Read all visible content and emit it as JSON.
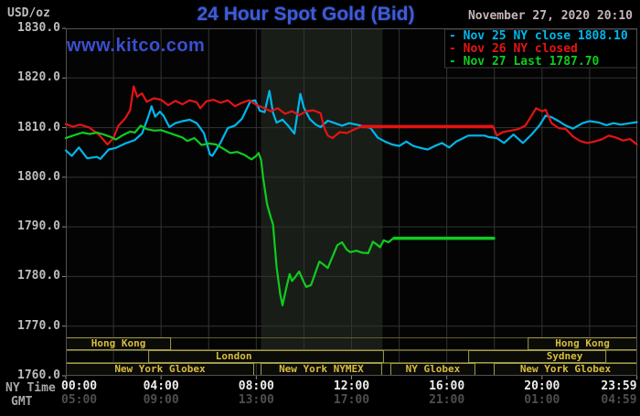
{
  "header": {
    "unit_label": "USD/oz",
    "title": "24 Hour Spot Gold (Bid)",
    "datetime": "November 27, 2020 20:10",
    "watermark": "www.kitco.com"
  },
  "legend": {
    "items": [
      {
        "text": "- Nov 25 NY close 1808.10",
        "color": "#00b7eb"
      },
      {
        "text": "- Nov 26 NY closed",
        "color": "#e41414"
      },
      {
        "text": "- Nov 27 Last 1787.70",
        "color": "#0fcc1f"
      }
    ]
  },
  "y_axis": {
    "labels": [
      {
        "value": 1830,
        "label": "1830.0"
      },
      {
        "value": 1820,
        "label": "1820.0"
      },
      {
        "value": 1810,
        "label": "1810.0"
      },
      {
        "value": 1800,
        "label": "1800.0"
      },
      {
        "value": 1790,
        "label": "1790.0"
      },
      {
        "value": 1780,
        "label": "1780.0"
      },
      {
        "value": 1770,
        "label": "1770.0"
      },
      {
        "value": 1760,
        "label": "1760.0"
      }
    ]
  },
  "x_axis": {
    "ny_label": "NY Time",
    "gmt_label": "GMT",
    "ticks": [
      {
        "hour": 0,
        "ny": "00:00",
        "gmt": "05:00",
        "align": "left"
      },
      {
        "hour": 4,
        "ny": "04:00",
        "gmt": "09:00",
        "align": "center"
      },
      {
        "hour": 8,
        "ny": "08:00",
        "gmt": "13:00",
        "align": "center"
      },
      {
        "hour": 12,
        "ny": "12:00",
        "gmt": "17:00",
        "align": "center"
      },
      {
        "hour": 16,
        "ny": "16:00",
        "gmt": "21:00",
        "align": "center"
      },
      {
        "hour": 20,
        "ny": "20:00",
        "gmt": "01:00",
        "align": "center"
      },
      {
        "hour": 23.983,
        "ny": "23:59",
        "gmt": "04:59",
        "align": "right"
      }
    ]
  },
  "sessions": {
    "rows": [
      {
        "boxes": [
          {
            "label": "Hong Kong",
            "from": 0,
            "to": 4.42
          },
          {
            "label": "Hong Kong",
            "from": 19.4,
            "to": 24
          }
        ]
      },
      {
        "boxes": [
          {
            "label": "London",
            "from": 3.46,
            "to": 13.36,
            "label_hour": 7.05
          },
          {
            "label": "Sydney",
            "from": 16.9,
            "to": 22.7,
            "label_hour": 20.95
          }
        ]
      },
      {
        "boxes": [
          {
            "label": "New York Globex",
            "from": 0,
            "to": 7.91
          },
          {
            "label": "New York NYMEX",
            "from": 8.18,
            "to": 13.28
          },
          {
            "label": "NY Globex",
            "from": 13.63,
            "to": 17.2
          },
          {
            "label": "New York Globex",
            "from": 17.97,
            "to": 24
          }
        ]
      }
    ]
  },
  "colors": {
    "background": "#000000",
    "plot_background": "#040404",
    "grid": "#333333",
    "plot_border": "#525252",
    "tick": "#8a8a8a",
    "session_row_border": "#63602a",
    "session_box_border": "#a19d4b",
    "session_text": "#d9bc3e",
    "legend_box_border": "#3a3a3a",
    "title_blue": "#3e5cd8",
    "watermark_blue": "#3a4fd0",
    "datetime_text": "#c6b6b6"
  },
  "chart_data": {
    "type": "line",
    "title": "24 Hour Spot Gold (Bid)",
    "ylabel": "USD/oz",
    "x_unit": "NY time, hours 0-24",
    "xlim": [
      0,
      24
    ],
    "ylim": [
      1760,
      1830
    ],
    "grid": {
      "vertical_hours": [
        2,
        4,
        6,
        8,
        10,
        12,
        14,
        16,
        18,
        20,
        22
      ],
      "horizontal_values": [
        1820,
        1810,
        1800,
        1790,
        1780,
        1770
      ]
    },
    "highlight_band": {
      "from": 8.2,
      "to": 13.3,
      "color": "#191d17",
      "note": "NYMEX floor session shading"
    },
    "series": [
      {
        "name": "Nov 25",
        "legend": "Nov 25 NY close 1808.10",
        "color": "#00b7eb",
        "points": [
          [
            0.0,
            1805.4
          ],
          [
            0.25,
            1804.3
          ],
          [
            0.55,
            1806.0
          ],
          [
            0.9,
            1803.8
          ],
          [
            1.3,
            1804.1
          ],
          [
            1.45,
            1803.7
          ],
          [
            1.8,
            1805.6
          ],
          [
            2.1,
            1805.9
          ],
          [
            2.5,
            1806.8
          ],
          [
            2.9,
            1807.5
          ],
          [
            3.2,
            1808.8
          ],
          [
            3.45,
            1812.0
          ],
          [
            3.6,
            1814.3
          ],
          [
            3.75,
            1812.2
          ],
          [
            3.95,
            1813.2
          ],
          [
            4.1,
            1812.4
          ],
          [
            4.35,
            1810.1
          ],
          [
            4.6,
            1810.9
          ],
          [
            4.9,
            1811.3
          ],
          [
            5.2,
            1811.6
          ],
          [
            5.5,
            1810.9
          ],
          [
            5.8,
            1808.9
          ],
          [
            6.05,
            1804.6
          ],
          [
            6.15,
            1804.3
          ],
          [
            6.5,
            1807.0
          ],
          [
            6.8,
            1809.9
          ],
          [
            7.1,
            1810.4
          ],
          [
            7.4,
            1811.8
          ],
          [
            7.75,
            1815.3
          ],
          [
            7.95,
            1815.5
          ],
          [
            8.15,
            1813.4
          ],
          [
            8.35,
            1813.1
          ],
          [
            8.55,
            1817.4
          ],
          [
            8.7,
            1813.0
          ],
          [
            8.85,
            1811.0
          ],
          [
            9.1,
            1811.6
          ],
          [
            9.35,
            1810.3
          ],
          [
            9.6,
            1808.8
          ],
          [
            9.85,
            1816.8
          ],
          [
            10.0,
            1814.0
          ],
          [
            10.25,
            1811.7
          ],
          [
            10.5,
            1810.6
          ],
          [
            10.7,
            1810.1
          ],
          [
            11.0,
            1811.4
          ],
          [
            11.3,
            1810.9
          ],
          [
            11.6,
            1810.4
          ],
          [
            11.9,
            1810.9
          ],
          [
            12.2,
            1810.6
          ],
          [
            12.5,
            1810.3
          ],
          [
            12.8,
            1809.9
          ],
          [
            13.1,
            1808.0
          ],
          [
            13.4,
            1807.2
          ],
          [
            13.7,
            1806.6
          ],
          [
            14.0,
            1806.3
          ],
          [
            14.3,
            1807.2
          ],
          [
            14.6,
            1806.3
          ],
          [
            14.9,
            1805.9
          ],
          [
            15.2,
            1805.6
          ],
          [
            15.5,
            1806.3
          ],
          [
            15.8,
            1806.9
          ],
          [
            16.1,
            1806.0
          ],
          [
            16.4,
            1807.2
          ],
          [
            16.7,
            1807.9
          ],
          [
            16.9,
            1808.4
          ],
          [
            17.6,
            1808.4
          ],
          [
            17.75,
            1808.1
          ],
          [
            18.1,
            1807.9
          ],
          [
            18.4,
            1806.9
          ],
          [
            18.8,
            1808.6
          ],
          [
            19.2,
            1806.9
          ],
          [
            19.6,
            1808.8
          ],
          [
            19.9,
            1810.5
          ],
          [
            20.15,
            1812.4
          ],
          [
            20.4,
            1812.1
          ],
          [
            20.7,
            1811.3
          ],
          [
            21.0,
            1810.4
          ],
          [
            21.3,
            1809.8
          ],
          [
            21.7,
            1810.9
          ],
          [
            22.0,
            1811.3
          ],
          [
            22.4,
            1811.0
          ],
          [
            22.7,
            1810.5
          ],
          [
            23.0,
            1810.9
          ],
          [
            23.3,
            1810.6
          ],
          [
            23.7,
            1810.9
          ],
          [
            23.98,
            1811.1
          ]
        ]
      },
      {
        "name": "Nov 26",
        "legend": "Nov 26 NY closed",
        "color": "#e41414",
        "flat_segment": {
          "from": 12.4,
          "to": 17.95,
          "value": 1810.2
        },
        "points": [
          [
            0.0,
            1810.7
          ],
          [
            0.3,
            1810.2
          ],
          [
            0.6,
            1810.6
          ],
          [
            1.0,
            1810.0
          ],
          [
            1.4,
            1808.5
          ],
          [
            1.75,
            1806.6
          ],
          [
            2.0,
            1807.9
          ],
          [
            2.2,
            1810.3
          ],
          [
            2.5,
            1811.9
          ],
          [
            2.7,
            1813.5
          ],
          [
            2.85,
            1818.3
          ],
          [
            3.0,
            1816.2
          ],
          [
            3.2,
            1816.9
          ],
          [
            3.4,
            1815.2
          ],
          [
            3.7,
            1815.9
          ],
          [
            4.0,
            1815.6
          ],
          [
            4.3,
            1814.5
          ],
          [
            4.6,
            1815.4
          ],
          [
            4.9,
            1814.7
          ],
          [
            5.2,
            1815.5
          ],
          [
            5.5,
            1815.1
          ],
          [
            5.65,
            1813.9
          ],
          [
            5.9,
            1815.3
          ],
          [
            6.2,
            1815.6
          ],
          [
            6.5,
            1815.0
          ],
          [
            6.8,
            1815.5
          ],
          [
            7.1,
            1814.3
          ],
          [
            7.4,
            1815.0
          ],
          [
            7.7,
            1815.5
          ],
          [
            8.0,
            1814.6
          ],
          [
            8.3,
            1814.0
          ],
          [
            8.6,
            1813.3
          ],
          [
            8.9,
            1813.9
          ],
          [
            9.2,
            1812.8
          ],
          [
            9.5,
            1813.3
          ],
          [
            9.8,
            1812.5
          ],
          [
            10.1,
            1813.3
          ],
          [
            10.4,
            1813.5
          ],
          [
            10.7,
            1812.9
          ],
          [
            10.85,
            1810.0
          ],
          [
            11.0,
            1808.4
          ],
          [
            11.2,
            1807.9
          ],
          [
            11.5,
            1809.1
          ],
          [
            11.8,
            1808.9
          ],
          [
            12.1,
            1809.6
          ],
          [
            12.4,
            1810.2
          ],
          [
            17.95,
            1810.2
          ],
          [
            18.1,
            1808.4
          ],
          [
            18.35,
            1809.1
          ],
          [
            18.7,
            1809.4
          ],
          [
            19.0,
            1809.7
          ],
          [
            19.3,
            1810.4
          ],
          [
            19.55,
            1812.3
          ],
          [
            19.75,
            1813.9
          ],
          [
            20.0,
            1813.3
          ],
          [
            20.15,
            1813.6
          ],
          [
            20.4,
            1810.9
          ],
          [
            20.7,
            1809.9
          ],
          [
            21.0,
            1809.7
          ],
          [
            21.3,
            1808.2
          ],
          [
            21.6,
            1807.3
          ],
          [
            21.9,
            1806.9
          ],
          [
            22.2,
            1807.2
          ],
          [
            22.5,
            1807.6
          ],
          [
            22.8,
            1808.4
          ],
          [
            23.1,
            1808.0
          ],
          [
            23.4,
            1807.4
          ],
          [
            23.7,
            1807.7
          ],
          [
            23.98,
            1806.6
          ]
        ]
      },
      {
        "name": "Nov 27",
        "legend": "Nov 27 Last 1787.70",
        "color": "#0fcc1f",
        "flat_segment": {
          "from": 13.75,
          "to": 18.0,
          "value": 1787.7
        },
        "points": [
          [
            0.0,
            1807.9
          ],
          [
            0.3,
            1808.4
          ],
          [
            0.7,
            1809.0
          ],
          [
            1.0,
            1808.7
          ],
          [
            1.3,
            1809.0
          ],
          [
            1.6,
            1808.6
          ],
          [
            1.9,
            1808.1
          ],
          [
            2.1,
            1807.6
          ],
          [
            2.4,
            1808.5
          ],
          [
            2.7,
            1809.2
          ],
          [
            2.9,
            1809.0
          ],
          [
            3.15,
            1810.4
          ],
          [
            3.4,
            1809.7
          ],
          [
            3.7,
            1809.4
          ],
          [
            4.0,
            1809.5
          ],
          [
            4.3,
            1809.0
          ],
          [
            4.6,
            1808.5
          ],
          [
            4.9,
            1808.0
          ],
          [
            5.1,
            1807.3
          ],
          [
            5.4,
            1807.9
          ],
          [
            5.7,
            1806.5
          ],
          [
            6.0,
            1806.8
          ],
          [
            6.3,
            1806.6
          ],
          [
            6.6,
            1805.8
          ],
          [
            6.9,
            1804.9
          ],
          [
            7.2,
            1805.1
          ],
          [
            7.5,
            1804.5
          ],
          [
            7.8,
            1803.6
          ],
          [
            8.0,
            1804.3
          ],
          [
            8.1,
            1804.9
          ],
          [
            8.2,
            1803.5
          ],
          [
            8.3,
            1799.5
          ],
          [
            8.45,
            1794.6
          ],
          [
            8.6,
            1792.0
          ],
          [
            8.7,
            1790.5
          ],
          [
            8.85,
            1782.0
          ],
          [
            9.0,
            1776.5
          ],
          [
            9.1,
            1774.2
          ],
          [
            9.25,
            1777.5
          ],
          [
            9.4,
            1780.5
          ],
          [
            9.5,
            1779.1
          ],
          [
            9.65,
            1780.0
          ],
          [
            9.8,
            1781.0
          ],
          [
            10.0,
            1778.8
          ],
          [
            10.1,
            1777.9
          ],
          [
            10.3,
            1778.3
          ],
          [
            10.5,
            1781.0
          ],
          [
            10.65,
            1783.0
          ],
          [
            10.8,
            1782.5
          ],
          [
            11.0,
            1781.7
          ],
          [
            11.2,
            1784.0
          ],
          [
            11.4,
            1786.3
          ],
          [
            11.6,
            1786.9
          ],
          [
            11.8,
            1785.4
          ],
          [
            11.95,
            1784.9
          ],
          [
            12.2,
            1785.2
          ],
          [
            12.45,
            1784.8
          ],
          [
            12.7,
            1784.7
          ],
          [
            12.9,
            1787.0
          ],
          [
            13.05,
            1786.5
          ],
          [
            13.2,
            1785.9
          ],
          [
            13.35,
            1787.3
          ],
          [
            13.55,
            1786.9
          ],
          [
            13.75,
            1787.7
          ],
          [
            18.0,
            1787.7
          ]
        ]
      }
    ]
  }
}
